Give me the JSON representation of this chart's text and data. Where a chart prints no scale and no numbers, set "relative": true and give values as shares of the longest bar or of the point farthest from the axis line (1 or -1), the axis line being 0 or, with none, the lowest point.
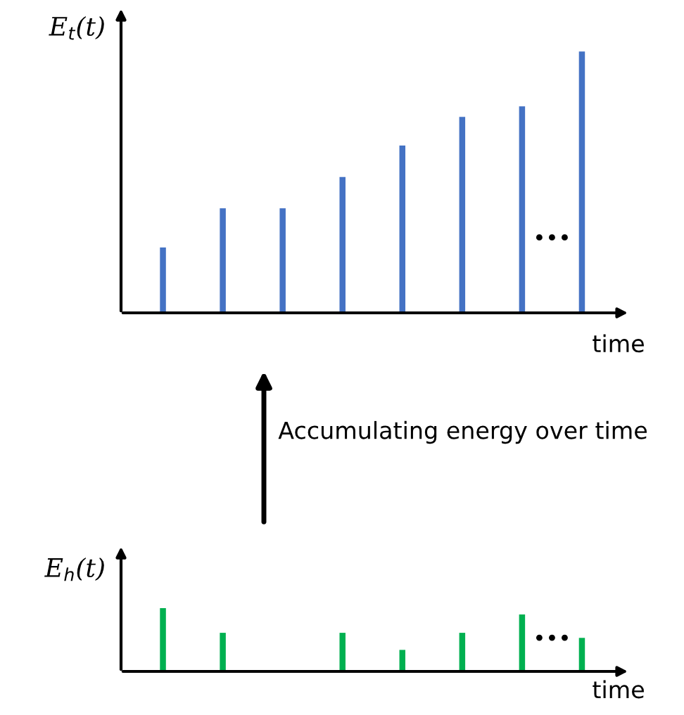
{
  "chart_data": [
    {
      "type": "bar",
      "relative": true,
      "ylabel": "E$_{t}$(t)",
      "xlabel": "time",
      "color": "#4472c4",
      "categories": [
        null,
        null,
        null,
        null,
        null,
        null,
        null,
        null
      ],
      "values": [
        0.25,
        0.4,
        0.4,
        0.52,
        0.64,
        0.75,
        0.79,
        1
      ],
      "annotations": [
        "•••"
      ]
    },
    {
      "type": "bar",
      "relative": true,
      "ylabel": "E$_{h}$(t)",
      "xlabel": "time",
      "color": "#00b050",
      "categories": [
        null,
        null,
        null,
        null,
        null,
        null,
        null,
        null
      ],
      "values": [
        1,
        0.61,
        0,
        0.61,
        0.34,
        0.61,
        0.9,
        0.53
      ],
      "annotations": [
        "•••",
        "Accumulating energy over time"
      ]
    }
  ]
}
